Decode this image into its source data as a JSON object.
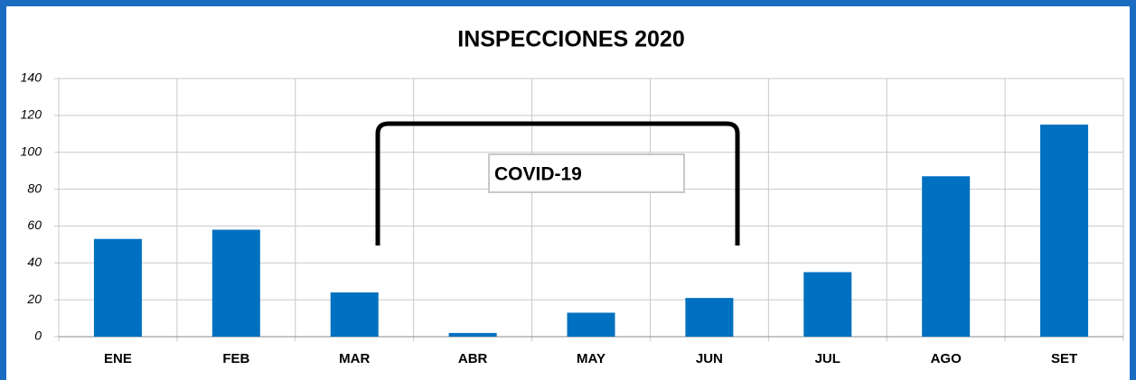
{
  "chart_data": {
    "type": "bar",
    "title": "INSPECCIONES 2020",
    "categories": [
      "ENE",
      "FEB",
      "MAR",
      "ABR",
      "MAY",
      "JUN",
      "JUL",
      "AGO",
      "SET"
    ],
    "values": [
      53,
      58,
      24,
      2,
      13,
      21,
      35,
      87,
      115
    ],
    "color": "#0070c0",
    "ylim": [
      0,
      140
    ],
    "yticks": [
      0,
      20,
      40,
      60,
      80,
      100,
      120,
      140
    ],
    "grid": true,
    "annotation": "COVID-19"
  }
}
